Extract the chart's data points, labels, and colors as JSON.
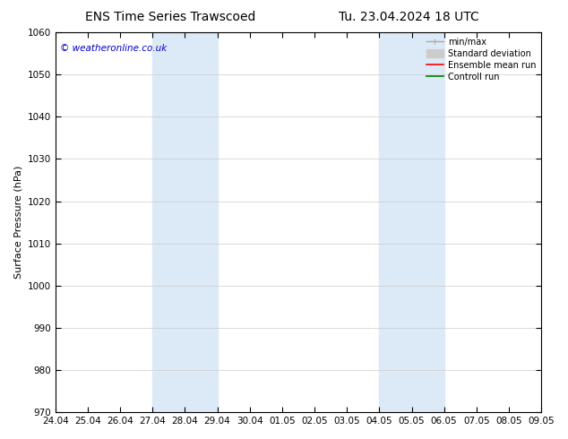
{
  "title_left": "ENS Time Series Trawscoed",
  "title_right": "Tu. 23.04.2024 18 UTC",
  "ylabel": "Surface Pressure (hPa)",
  "ylim": [
    970,
    1060
  ],
  "yticks": [
    970,
    980,
    990,
    1000,
    1010,
    1020,
    1030,
    1040,
    1050,
    1060
  ],
  "xtick_labels": [
    "24.04",
    "25.04",
    "26.04",
    "27.04",
    "28.04",
    "29.04",
    "30.04",
    "01.05",
    "02.05",
    "03.05",
    "04.05",
    "05.05",
    "06.05",
    "07.05",
    "08.05",
    "09.05"
  ],
  "xtick_positions": [
    0,
    1,
    2,
    3,
    4,
    5,
    6,
    7,
    8,
    9,
    10,
    11,
    12,
    13,
    14,
    15
  ],
  "shaded_bands": [
    {
      "x_start": 3,
      "x_end": 5
    },
    {
      "x_start": 10,
      "x_end": 12
    }
  ],
  "shaded_color": "#dce9f7",
  "background_color": "#ffffff",
  "watermark_text": "© weatheronline.co.uk",
  "watermark_color": "#0000cc",
  "legend_items": [
    {
      "label": "min/max",
      "color": "#aaaaaa",
      "lw": 1.0,
      "style": "minmax"
    },
    {
      "label": "Standard deviation",
      "color": "#cccccc",
      "lw": 5,
      "style": "band"
    },
    {
      "label": "Ensemble mean run",
      "color": "#ff0000",
      "lw": 1.2,
      "style": "line"
    },
    {
      "label": "Controll run",
      "color": "#008000",
      "lw": 1.2,
      "style": "line"
    }
  ],
  "grid_color": "#cccccc",
  "tick_color": "#000000",
  "title_fontsize": 10,
  "label_fontsize": 8,
  "tick_fontsize": 7.5,
  "legend_fontsize": 7,
  "watermark_fontsize": 7.5
}
